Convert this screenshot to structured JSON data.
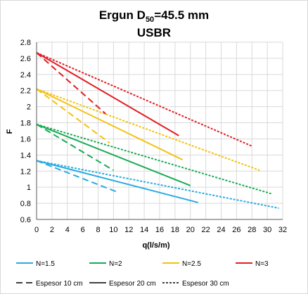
{
  "chart_data": {
    "type": "line",
    "title_prefix": "Ergun D",
    "title_subscript": "50",
    "title_suffix": "=45.5 mm",
    "subtitle": "USBR",
    "xlabel": "q(l/s/m)",
    "ylabel": "F",
    "xlim": [
      0,
      32
    ],
    "ylim": [
      0.6,
      2.8
    ],
    "x_ticks": [
      0,
      2,
      4,
      6,
      8,
      10,
      12,
      14,
      16,
      18,
      20,
      22,
      24,
      26,
      28,
      30,
      32
    ],
    "y_ticks": [
      0.6,
      0.8,
      1,
      1.2,
      1.4,
      1.6,
      1.8,
      2,
      2.2,
      2.4,
      2.6,
      2.8
    ],
    "y_tick_labels": [
      "0.6",
      "0.8",
      "1",
      "1.2",
      "1.4",
      "1.6",
      "1.8",
      "2",
      "2.2",
      "2.4",
      "2.6",
      "2.8"
    ],
    "grid": true,
    "legend_position": "bottom",
    "colors": {
      "N=1.5": "#29abe2",
      "N=2": "#1aaa55",
      "N=2.5": "#f4c20d",
      "N=3": "#e31e24",
      "axis": "#595959",
      "grid": "#d9d9d9"
    },
    "legend_colors": [
      {
        "name": "N=1.5"
      },
      {
        "name": "N=2"
      },
      {
        "name": "N=2.5"
      },
      {
        "name": "N=3"
      }
    ],
    "legend_styles": [
      {
        "name": "Espesor 10 cm",
        "dash": "dashed"
      },
      {
        "name": "Espesor 20 cm",
        "dash": "solid"
      },
      {
        "name": "Espesor 30 cm",
        "dash": "dotted"
      }
    ],
    "series": [
      {
        "group": "N=1.5",
        "style": "Espesor 10 cm",
        "x": [
          0,
          10.5
        ],
        "y": [
          1.33,
          0.94
        ]
      },
      {
        "group": "N=1.5",
        "style": "Espesor 20 cm",
        "x": [
          0,
          21
        ],
        "y": [
          1.33,
          0.81
        ]
      },
      {
        "group": "N=1.5",
        "style": "Espesor 30 cm",
        "x": [
          0,
          31.5
        ],
        "y": [
          1.33,
          0.74
        ]
      },
      {
        "group": "N=2",
        "style": "Espesor 10 cm",
        "x": [
          0,
          10
        ],
        "y": [
          1.78,
          1.21
        ]
      },
      {
        "group": "N=2",
        "style": "Espesor 20 cm",
        "x": [
          0,
          20
        ],
        "y": [
          1.78,
          1.02
        ]
      },
      {
        "group": "N=2",
        "style": "Espesor 30 cm",
        "x": [
          0,
          30.5
        ],
        "y": [
          1.78,
          0.92
        ]
      },
      {
        "group": "N=2.5",
        "style": "Espesor 10 cm",
        "x": [
          0,
          9.5
        ],
        "y": [
          2.22,
          1.55
        ]
      },
      {
        "group": "N=2.5",
        "style": "Espesor 20 cm",
        "x": [
          0,
          19
        ],
        "y": [
          2.22,
          1.34
        ]
      },
      {
        "group": "N=2.5",
        "style": "Espesor 30 cm",
        "x": [
          0,
          29
        ],
        "y": [
          2.22,
          1.21
        ]
      },
      {
        "group": "N=3",
        "style": "Espesor 10 cm",
        "x": [
          0,
          9
        ],
        "y": [
          2.67,
          1.91
        ]
      },
      {
        "group": "N=3",
        "style": "Espesor 20 cm",
        "x": [
          0,
          18.5
        ],
        "y": [
          2.67,
          1.64
        ]
      },
      {
        "group": "N=3",
        "style": "Espesor 30 cm",
        "x": [
          0,
          28
        ],
        "y": [
          2.67,
          1.51
        ]
      }
    ]
  }
}
